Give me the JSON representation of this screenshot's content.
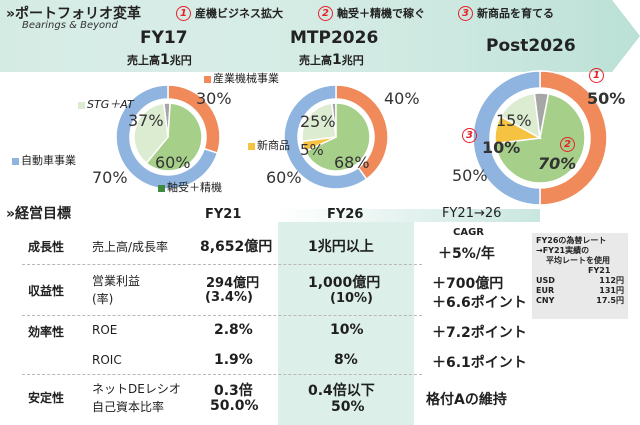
{
  "header": {
    "title": "»ポートフォリオ変革",
    "subtitle": "Bearings & Beyond",
    "themes": [
      {
        "num": "1",
        "label": "産機ビジネス拡大"
      },
      {
        "num": "2",
        "label": "軸受＋精機で稼ぐ"
      },
      {
        "num": "3",
        "label": "新商品を育てる"
      }
    ],
    "colors": {
      "banner": "#c9e6df",
      "accent_red": "#e8202a"
    }
  },
  "charts": [
    {
      "period": "FY17",
      "sales_prefix": "売上高",
      "sales_value": "1",
      "sales_unit": "兆円",
      "inner": [
        {
          "name": "STG＋AT",
          "value": 37
        },
        {
          "name": "軸受＋精機",
          "value": 60
        },
        {
          "name": "other",
          "value": 3
        }
      ],
      "outer": [
        {
          "name": "産業機械事業",
          "value": 30
        },
        {
          "name": "自動車事業",
          "value": 70
        }
      ],
      "labels": {
        "industrial": "産業機械事業",
        "stg": "STG＋AT",
        "auto": "自動車事業",
        "bearing": "軸受＋精機"
      },
      "pcts": {
        "outer_ind": "30%",
        "outer_auto": "70%",
        "inner_stg": "37%",
        "inner_bear": "60%"
      }
    },
    {
      "period": "MTP2026",
      "sales_prefix": "売上高",
      "sales_value": "1",
      "sales_unit": "兆円",
      "inner": [
        {
          "name": "STG＋AT",
          "value": 25
        },
        {
          "name": "新商品",
          "value": 5
        },
        {
          "name": "軸受＋精機",
          "value": 68
        },
        {
          "name": "other",
          "value": 2
        }
      ],
      "outer": [
        {
          "name": "産業機械事業",
          "value": 40
        },
        {
          "name": "自動車事業",
          "value": 60
        }
      ],
      "labels": {
        "newprod": "新商品"
      },
      "pcts": {
        "outer_ind": "40%",
        "outer_auto": "60%",
        "inner_stg": "25%",
        "inner_new": "5%",
        "inner_bear": "68%"
      }
    },
    {
      "period": "Post2026",
      "inner": [
        {
          "name": "STG＋AT",
          "value": 15
        },
        {
          "name": "新商品",
          "value": 10
        },
        {
          "name": "軸受＋精機",
          "value": 70
        },
        {
          "name": "other",
          "value": 5
        }
      ],
      "outer": [
        {
          "name": "産業機械事業",
          "value": 50
        },
        {
          "name": "自動車事業",
          "value": 50
        }
      ],
      "pcts": {
        "outer_ind": "50%",
        "outer_auto": "50%",
        "inner_stg": "15%",
        "inner_new": "10%",
        "inner_bear": "70%"
      },
      "markers": [
        "1",
        "2",
        "3"
      ]
    }
  ],
  "table": {
    "title": "»経営目標",
    "headers": [
      "FY21",
      "FY26",
      "FY21→26"
    ],
    "rows": [
      {
        "cat": "成長性",
        "metric": "売上高/成長率",
        "fy21": "8,652億円",
        "fy26": "1兆円以上",
        "chg_top": "CAGR",
        "chg": "＋5%/年"
      },
      {
        "cat": "収益性",
        "metric": "営業利益",
        "metric2": "(率)",
        "fy21": "294億円",
        "fy21b": "(3.4%)",
        "fy26": "1,000億円",
        "fy26b": "(10%)",
        "chg": "＋700億円",
        "chg2": "＋6.6ポイント"
      },
      {
        "cat": "効率性",
        "metric": "ROE",
        "fy21": "2.8%",
        "fy26": "10%",
        "chg": "＋7.2ポイント"
      },
      {
        "cat": "",
        "metric": "ROIC",
        "fy21": "1.9%",
        "fy26": "8%",
        "chg": "＋6.1ポイント"
      },
      {
        "cat": "安定性",
        "metric": "ネットDEレシオ",
        "metric2": "自己資本比率",
        "fy21": "0.3倍",
        "fy21b": "50.0%",
        "fy26": "0.4倍以下",
        "fy26b": "50%",
        "chg": "格付Aの維持"
      }
    ]
  },
  "note": {
    "lines": [
      "FY26の為替レート",
      "→FY21実績の",
      "平均レートを使用"
    ],
    "col_header": "FY21",
    "rates": [
      {
        "cur": "USD",
        "rate": "112円"
      },
      {
        "cur": "EUR",
        "rate": "131円"
      },
      {
        "cur": "CNY",
        "rate": "17.5円"
      }
    ]
  },
  "colors": {
    "orange": "#f08a5a",
    "blue": "#8fb4e0",
    "green": "#a6d08a",
    "lightgreen": "#dcecd1",
    "yellow": "#f5c242",
    "gray": "#a6a6a6"
  }
}
